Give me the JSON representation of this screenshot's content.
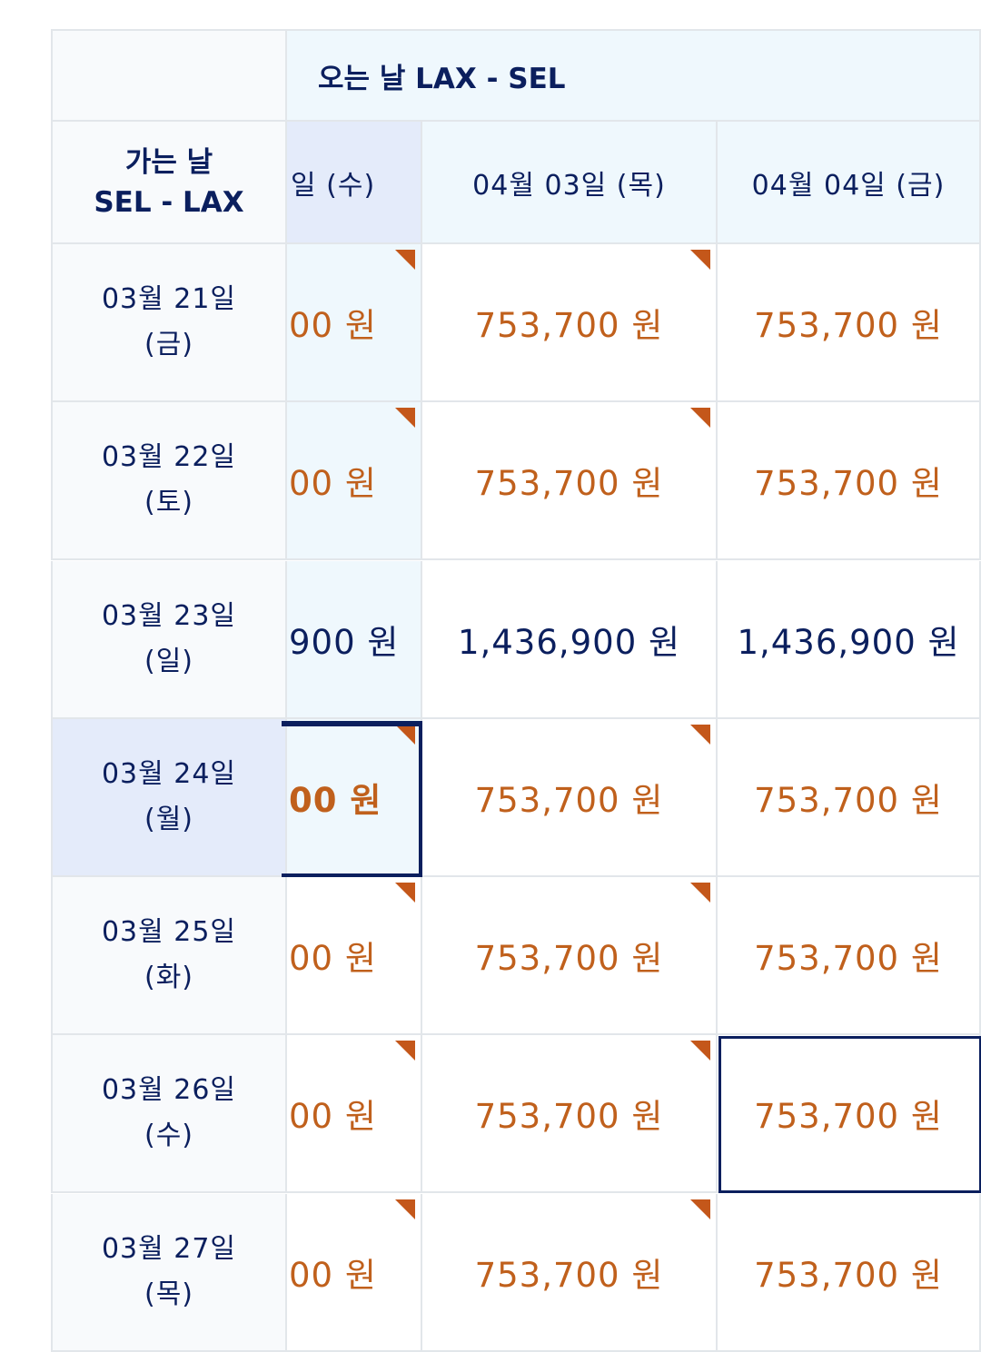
{
  "header": {
    "return_label": "오는 날 LAX - SEL",
    "depart_label": "가는 날",
    "depart_route": "SEL - LAX"
  },
  "columns": [
    "일 (수)",
    "04월 03일 (목)",
    "04월 04일 (금)"
  ],
  "rows": [
    {
      "date": "03월 21일",
      "weekday": "(금)",
      "fares": [
        "00 원",
        "753,700 원",
        "753,700 원"
      ]
    },
    {
      "date": "03월 22일",
      "weekday": "(토)",
      "fares": [
        "00 원",
        "753,700 원",
        "753,700 원"
      ]
    },
    {
      "date": "03월 23일",
      "weekday": "(일)",
      "fares": [
        "900 원",
        "1,436,900 원",
        "1,436,900 원"
      ]
    },
    {
      "date": "03월 24일",
      "weekday": "(월)",
      "fares": [
        "00 원",
        "753,700 원",
        "753,700 원"
      ]
    },
    {
      "date": "03월 25일",
      "weekday": "(화)",
      "fares": [
        "00 원",
        "753,700 원",
        "753,700 원"
      ]
    },
    {
      "date": "03월 26일",
      "weekday": "(수)",
      "fares": [
        "00 원",
        "753,700 원",
        "753,700 원"
      ]
    },
    {
      "date": "03월 27일",
      "weekday": "(목)",
      "fares": [
        "00 원",
        "753,700 원",
        "753,700 원"
      ]
    }
  ]
}
